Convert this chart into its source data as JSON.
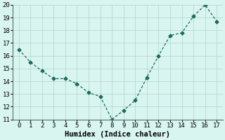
{
  "x": [
    0,
    1,
    2,
    3,
    4,
    5,
    6,
    7,
    8,
    9,
    10,
    11,
    12,
    13,
    14,
    15,
    16,
    17
  ],
  "y": [
    16.5,
    15.5,
    14.8,
    14.2,
    14.2,
    13.8,
    13.1,
    12.8,
    11.0,
    11.7,
    12.5,
    14.3,
    16.0,
    17.6,
    17.8,
    19.1,
    20.0,
    18.7
  ],
  "line_color": "#1a6b5e",
  "marker": "D",
  "marker_size": 2.5,
  "bg_color": "#d9f5f0",
  "grid_color": "#b8d8d2",
  "xlabel": "Humidex (Indice chaleur)",
  "ylim": [
    11,
    20
  ],
  "xlim": [
    -0.5,
    17.5
  ],
  "yticks": [
    11,
    12,
    13,
    14,
    15,
    16,
    17,
    18,
    19,
    20
  ],
  "xticks": [
    0,
    1,
    2,
    3,
    4,
    5,
    6,
    7,
    8,
    9,
    10,
    11,
    12,
    13,
    14,
    15,
    16,
    17
  ],
  "tick_fontsize": 6.5,
  "xlabel_fontsize": 7.5,
  "linewidth": 0.9
}
